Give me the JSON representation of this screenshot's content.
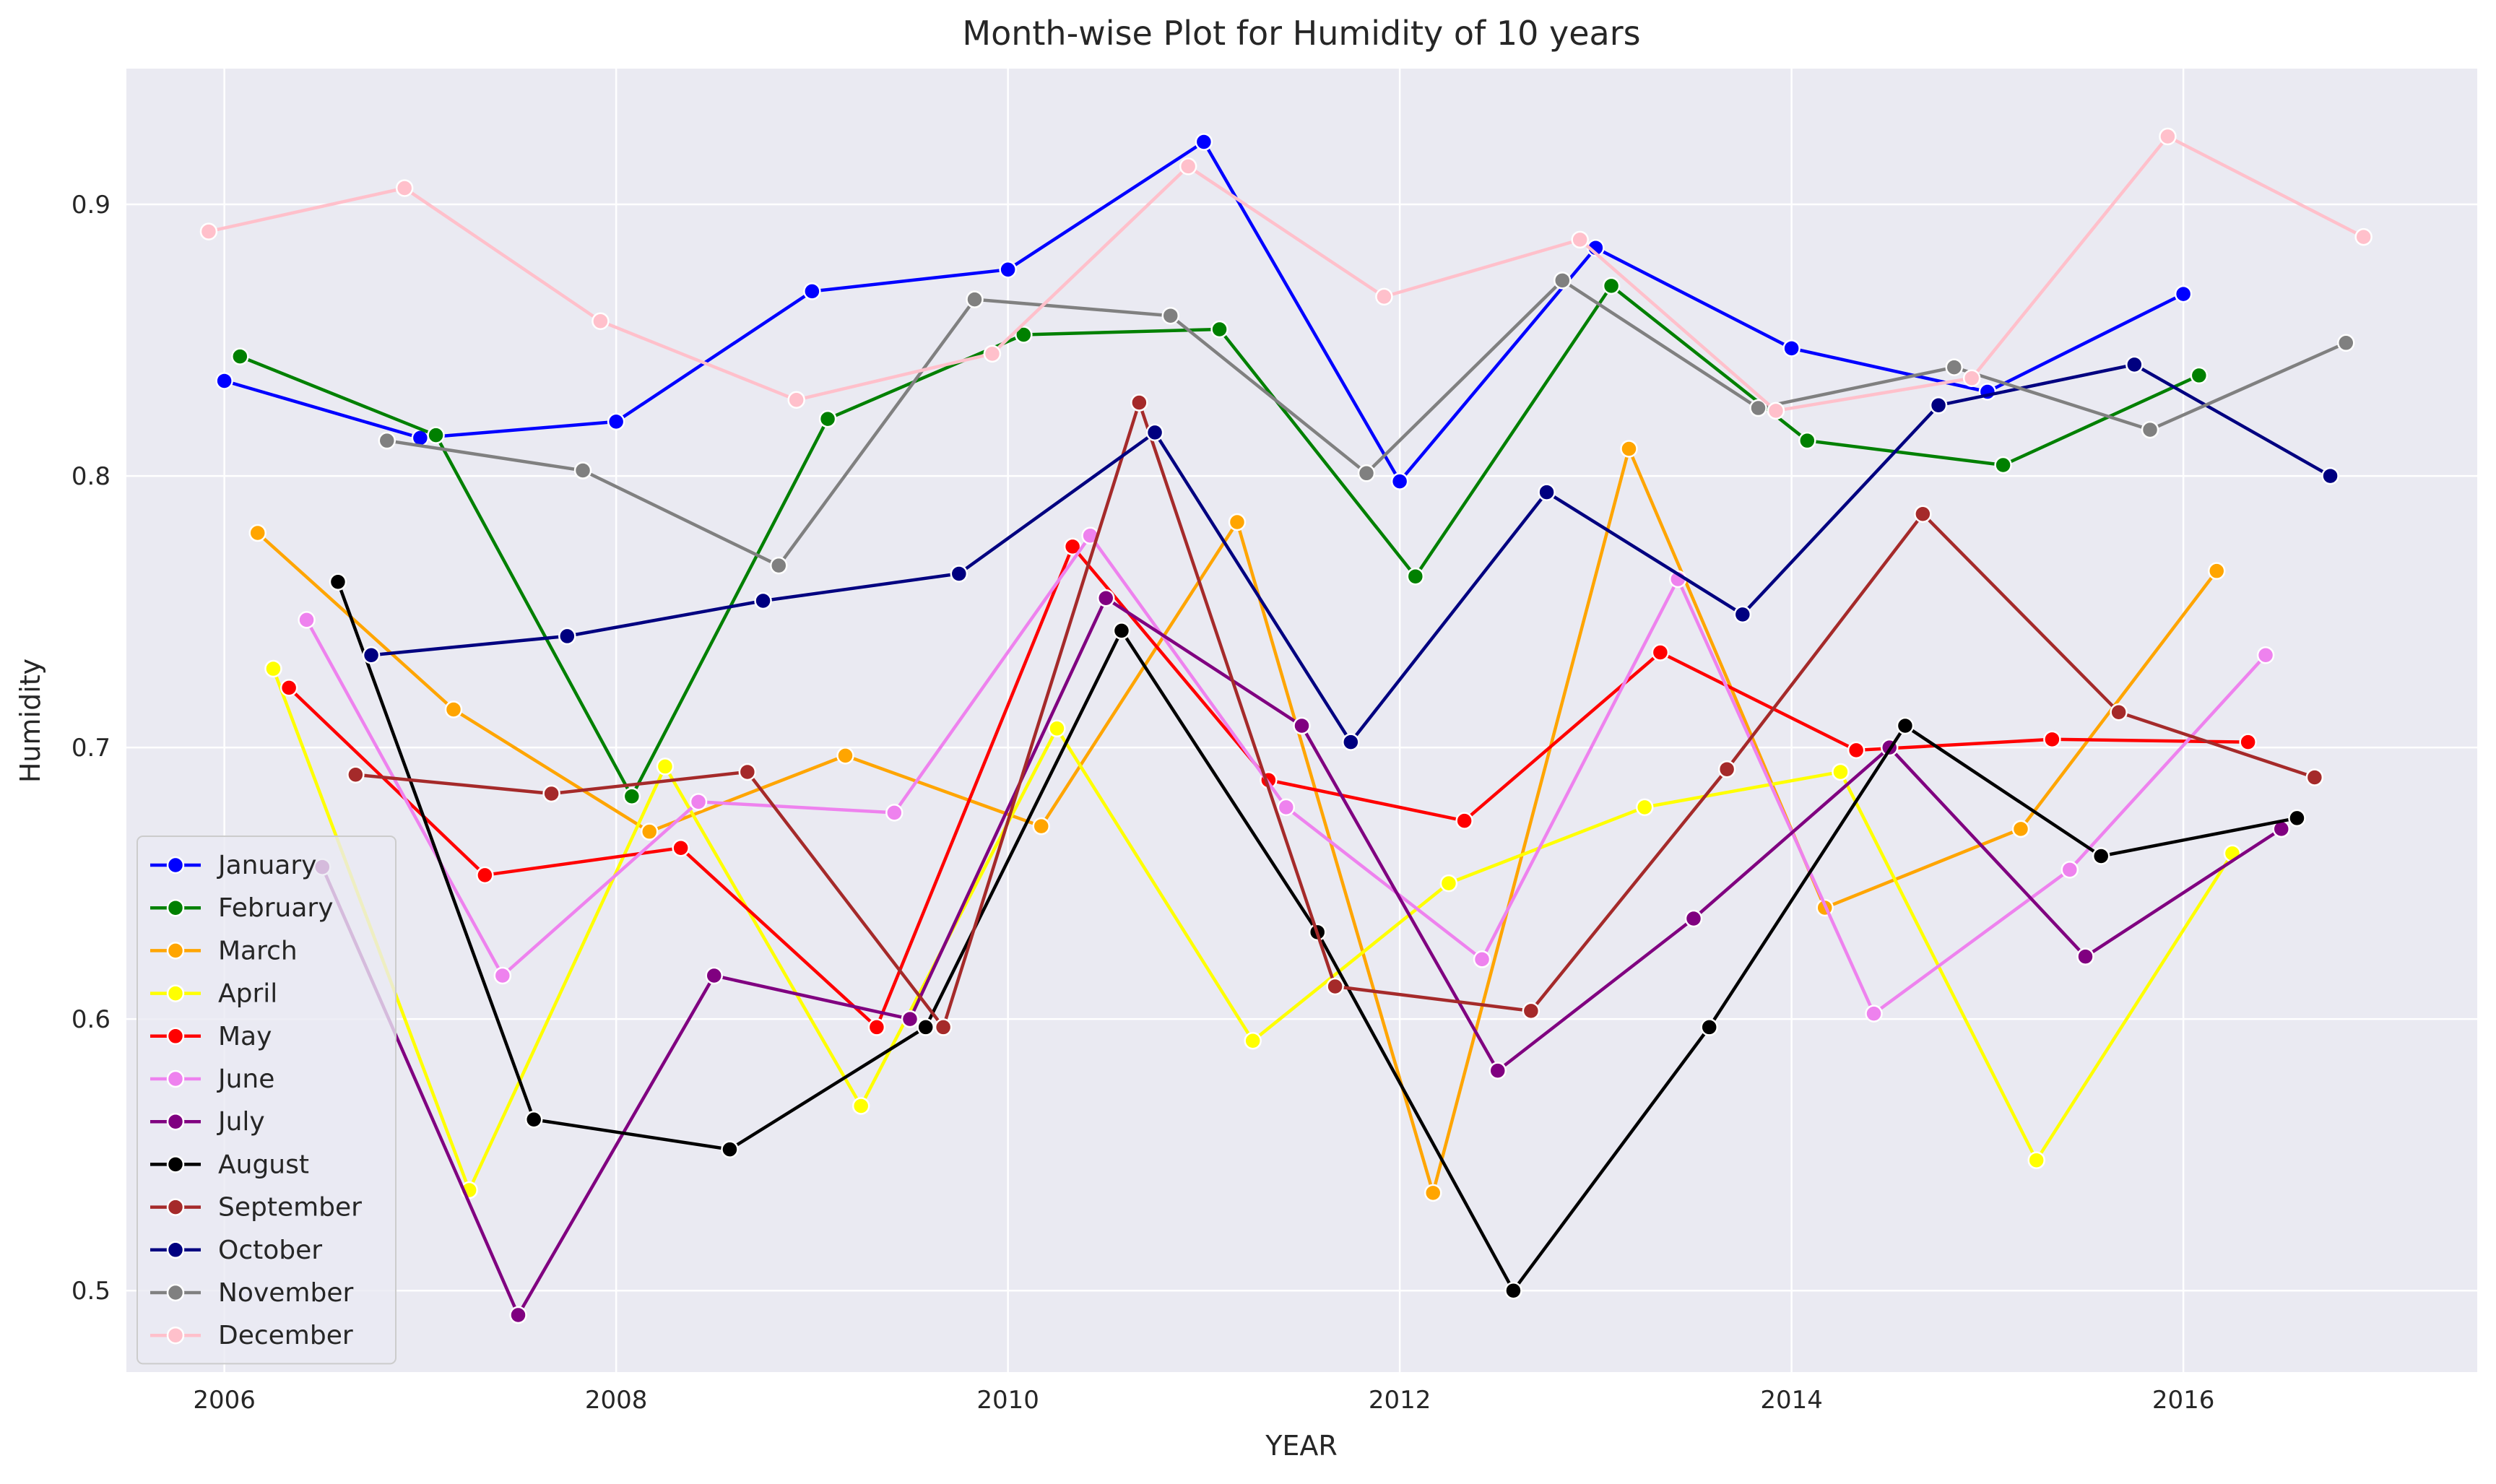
{
  "chart_data": {
    "type": "line",
    "title": "Month-wise Plot for Humidity of 10 years",
    "xlabel": "YEAR",
    "ylabel": "Humidity",
    "xlim": [
      2005.5,
      2017.5
    ],
    "ylim": [
      0.47,
      0.95
    ],
    "xticks": [
      "2006",
      "2008",
      "2010",
      "2012",
      "2014",
      "2016"
    ],
    "yticks": [
      "0.5",
      "0.6",
      "0.7",
      "0.8",
      "0.9"
    ],
    "grid": true,
    "legend_position": "lower-left",
    "series": [
      {
        "name": "January",
        "color": "#0000ff",
        "points": [
          [
            2006.0,
            0.835
          ],
          [
            2007.0,
            0.814
          ],
          [
            2008.0,
            0.82
          ],
          [
            2009.0,
            0.868
          ],
          [
            2010.0,
            0.876
          ],
          [
            2011.0,
            0.923
          ],
          [
            2012.0,
            0.798
          ],
          [
            2013.0,
            0.884
          ],
          [
            2014.0,
            0.847
          ],
          [
            2015.0,
            0.831
          ],
          [
            2016.0,
            0.867
          ]
        ]
      },
      {
        "name": "February",
        "color": "#008000",
        "points": [
          [
            2006.08,
            0.844
          ],
          [
            2007.08,
            0.815
          ],
          [
            2008.08,
            0.682
          ],
          [
            2009.08,
            0.821
          ],
          [
            2010.08,
            0.852
          ],
          [
            2011.08,
            0.854
          ],
          [
            2012.08,
            0.763
          ],
          [
            2013.08,
            0.87
          ],
          [
            2014.08,
            0.813
          ],
          [
            2015.08,
            0.804
          ],
          [
            2016.08,
            0.837
          ]
        ]
      },
      {
        "name": "March",
        "color": "#ffa500",
        "points": [
          [
            2006.17,
            0.779
          ],
          [
            2007.17,
            0.714
          ],
          [
            2008.17,
            0.669
          ],
          [
            2009.17,
            0.697
          ],
          [
            2010.17,
            0.671
          ],
          [
            2011.17,
            0.783
          ],
          [
            2012.17,
            0.536
          ],
          [
            2013.17,
            0.81
          ],
          [
            2014.17,
            0.641
          ],
          [
            2015.17,
            0.67
          ],
          [
            2016.17,
            0.765
          ]
        ]
      },
      {
        "name": "April",
        "color": "#ffff00",
        "points": [
          [
            2006.25,
            0.729
          ],
          [
            2007.25,
            0.537
          ],
          [
            2008.25,
            0.693
          ],
          [
            2009.25,
            0.568
          ],
          [
            2010.25,
            0.707
          ],
          [
            2011.25,
            0.592
          ],
          [
            2012.25,
            0.65
          ],
          [
            2013.25,
            0.678
          ],
          [
            2014.25,
            0.691
          ],
          [
            2015.25,
            0.548
          ],
          [
            2016.25,
            0.661
          ]
        ]
      },
      {
        "name": "May",
        "color": "#ff0000",
        "points": [
          [
            2006.33,
            0.722
          ],
          [
            2007.33,
            0.653
          ],
          [
            2008.33,
            0.663
          ],
          [
            2009.33,
            0.597
          ],
          [
            2010.33,
            0.774
          ],
          [
            2011.33,
            0.688
          ],
          [
            2012.33,
            0.673
          ],
          [
            2013.33,
            0.735
          ],
          [
            2014.33,
            0.699
          ],
          [
            2015.33,
            0.703
          ],
          [
            2016.33,
            0.702
          ]
        ]
      },
      {
        "name": "June",
        "color": "#ee82ee",
        "points": [
          [
            2006.42,
            0.747
          ],
          [
            2007.42,
            0.616
          ],
          [
            2008.42,
            0.68
          ],
          [
            2009.42,
            0.676
          ],
          [
            2010.42,
            0.778
          ],
          [
            2011.42,
            0.678
          ],
          [
            2012.42,
            0.622
          ],
          [
            2013.42,
            0.762
          ],
          [
            2014.42,
            0.602
          ],
          [
            2015.42,
            0.655
          ],
          [
            2016.42,
            0.734
          ]
        ]
      },
      {
        "name": "July",
        "color": "#800080",
        "points": [
          [
            2006.5,
            0.656
          ],
          [
            2007.5,
            0.491
          ],
          [
            2008.5,
            0.616
          ],
          [
            2009.5,
            0.6
          ],
          [
            2010.5,
            0.755
          ],
          [
            2011.5,
            0.708
          ],
          [
            2012.5,
            0.581
          ],
          [
            2013.5,
            0.637
          ],
          [
            2014.5,
            0.7
          ],
          [
            2015.5,
            0.623
          ],
          [
            2016.5,
            0.67
          ]
        ]
      },
      {
        "name": "August",
        "color": "#000000",
        "points": [
          [
            2006.58,
            0.761
          ],
          [
            2007.58,
            0.563
          ],
          [
            2008.58,
            0.552
          ],
          [
            2009.58,
            0.597
          ],
          [
            2010.58,
            0.743
          ],
          [
            2011.58,
            0.632
          ],
          [
            2012.58,
            0.5
          ],
          [
            2013.58,
            0.597
          ],
          [
            2014.58,
            0.708
          ],
          [
            2015.58,
            0.66
          ],
          [
            2016.58,
            0.674
          ]
        ]
      },
      {
        "name": "September",
        "color": "#a52a2a",
        "points": [
          [
            2006.67,
            0.69
          ],
          [
            2007.67,
            0.683
          ],
          [
            2008.67,
            0.691
          ],
          [
            2009.67,
            0.597
          ],
          [
            2010.67,
            0.827
          ],
          [
            2011.67,
            0.612
          ],
          [
            2012.67,
            0.603
          ],
          [
            2013.67,
            0.692
          ],
          [
            2014.67,
            0.786
          ],
          [
            2015.67,
            0.713
          ],
          [
            2016.67,
            0.689
          ]
        ]
      },
      {
        "name": "October",
        "color": "#000080",
        "points": [
          [
            2006.75,
            0.734
          ],
          [
            2007.75,
            0.741
          ],
          [
            2008.75,
            0.754
          ],
          [
            2009.75,
            0.764
          ],
          [
            2010.75,
            0.816
          ],
          [
            2011.75,
            0.702
          ],
          [
            2012.75,
            0.794
          ],
          [
            2013.75,
            0.749
          ],
          [
            2014.75,
            0.826
          ],
          [
            2015.75,
            0.841
          ],
          [
            2016.75,
            0.8
          ]
        ]
      },
      {
        "name": "November",
        "color": "#808080",
        "points": [
          [
            2006.83,
            0.813
          ],
          [
            2007.83,
            0.802
          ],
          [
            2008.83,
            0.767
          ],
          [
            2009.83,
            0.865
          ],
          [
            2010.83,
            0.859
          ],
          [
            2011.83,
            0.801
          ],
          [
            2012.83,
            0.872
          ],
          [
            2013.83,
            0.825
          ],
          [
            2014.83,
            0.84
          ],
          [
            2015.83,
            0.817
          ],
          [
            2016.83,
            0.849
          ]
        ]
      },
      {
        "name": "December",
        "color": "#ffc0cb",
        "points": [
          [
            2005.92,
            0.89
          ],
          [
            2006.92,
            0.906
          ],
          [
            2007.92,
            0.857
          ],
          [
            2008.92,
            0.828
          ],
          [
            2009.92,
            0.845
          ],
          [
            2010.92,
            0.914
          ],
          [
            2011.92,
            0.866
          ],
          [
            2012.92,
            0.887
          ],
          [
            2013.92,
            0.824
          ],
          [
            2014.92,
            0.836
          ],
          [
            2015.92,
            0.925
          ],
          [
            2016.92,
            0.888
          ]
        ]
      }
    ]
  }
}
